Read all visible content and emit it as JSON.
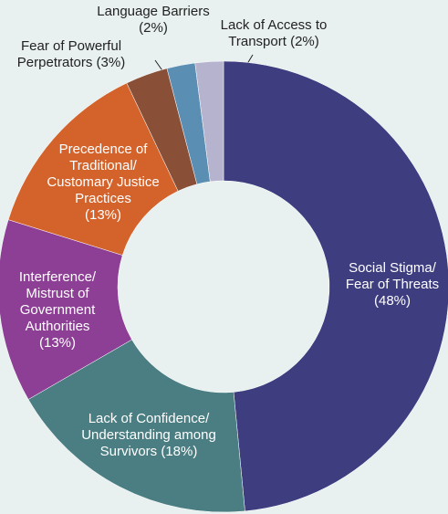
{
  "chart_data": {
    "type": "donut",
    "categories": [
      "Social Stigma/\nFear of Threats",
      "Lack of Confidence/\nUnderstanding among\nSurvivors",
      "Interference/\nMistrust of\nGovernment\nAuthorities",
      "Precedence of\nTraditional/\nCustomary Justice\nPractices",
      "Fear of Powerful\nPerpetrators",
      "Language Barriers",
      "Lack of Access to\nTransport"
    ],
    "values": [
      48,
      18,
      13,
      13,
      3,
      2,
      2
    ],
    "value_labels": [
      "(48%)",
      "(18%)",
      "(13%)",
      "(13%)",
      "(3%)",
      "(2%)",
      "(2%)"
    ],
    "colors": [
      "#3d3d80",
      "#4a7e82",
      "#8d3f95",
      "#d4632b",
      "#8a4f37",
      "#5a8eb3",
      "#b6b3cf"
    ]
  }
}
